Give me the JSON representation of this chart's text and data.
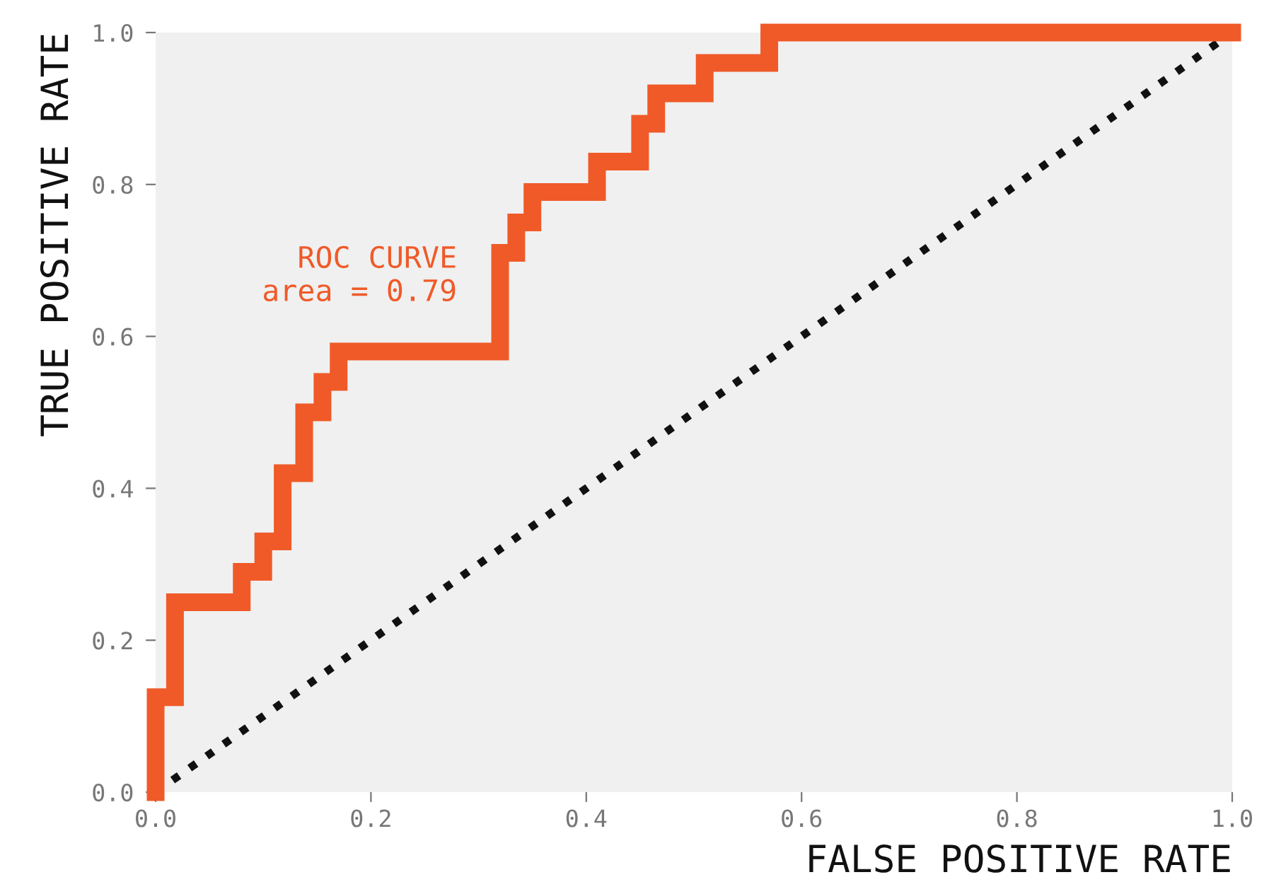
{
  "chart_data": {
    "type": "line",
    "xlabel": "FALSE POSITIVE RATE",
    "ylabel": "TRUE POSITIVE RATE",
    "annotations": [
      "ROC CURVE\narea = 0.79"
    ],
    "series": [
      {
        "type": "step",
        "color": "#f05a28",
        "x": [
          0,
          0,
          0.018,
          0.08,
          0.1,
          0.118,
          0.138,
          0.155,
          0.17,
          0.32,
          0.335,
          0.35,
          0.41,
          0.45,
          0.465,
          0.51,
          0.57,
          1.0
        ],
        "values": [
          0,
          0.125,
          0.25,
          0.29,
          0.33,
          0.42,
          0.5,
          0.54,
          0.58,
          0.71,
          0.75,
          0.79,
          0.83,
          0.88,
          0.92,
          0.96,
          1.0,
          1.0
        ]
      },
      {
        "color": "#111111",
        "line_style": "dotted",
        "x": [
          0,
          1
        ],
        "values": [
          0,
          1
        ]
      }
    ],
    "xlim": [
      0,
      1
    ],
    "ylim": [
      0,
      1
    ],
    "xticks": [
      {
        "value": 0,
        "label": "0.0"
      },
      0.2,
      0.4,
      0.6,
      0.8,
      {
        "value": 1,
        "label": "1.0"
      }
    ],
    "yticks": [
      {
        "value": 0,
        "label": "0.0"
      },
      0.2,
      0.4,
      0.6,
      0.8,
      {
        "value": 1,
        "label": "1.0"
      }
    ],
    "grid": false,
    "legend": false
  }
}
